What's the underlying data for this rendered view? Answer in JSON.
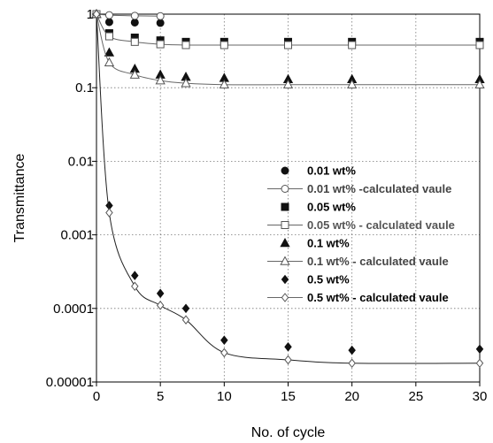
{
  "chart_data": {
    "type": "scatter",
    "xlabel": "No. of cycle",
    "ylabel": "Transmittance",
    "xlim": [
      0,
      30
    ],
    "ylim": [
      1e-05,
      1
    ],
    "y_scale": "log",
    "grid": "dotted",
    "legend_position": "right-center",
    "x_ticks": [
      0,
      5,
      10,
      15,
      20,
      25,
      30
    ],
    "x_tick_labels": [
      "0",
      "5",
      "10",
      "15",
      "20",
      "25",
      "30"
    ],
    "y_ticks": [
      1e-05,
      0.0001,
      0.001,
      0.01,
      0.1,
      1
    ],
    "y_tick_labels": [
      "0.00001",
      "0.0001",
      "0.001",
      "0.01",
      "0.1",
      "1"
    ],
    "series": [
      {
        "name": "0.01  wt%",
        "marker": "filled-circle",
        "line": false,
        "legend_bold": true,
        "legend_color": "#000000",
        "x": [
          0,
          1,
          3,
          5
        ],
        "y": [
          1,
          0.78,
          0.77,
          0.76
        ]
      },
      {
        "name": "0.01 wt% -calculated vaule",
        "marker": "open-circle",
        "line": true,
        "legend_bold": true,
        "legend_color": "#444444",
        "x": [
          0,
          1,
          3,
          5
        ],
        "y": [
          1,
          0.97,
          0.95,
          0.94
        ]
      },
      {
        "name": "0.05 wt%",
        "marker": "filled-square",
        "line": false,
        "legend_bold": true,
        "legend_color": "#000000",
        "x": [
          0,
          1,
          3,
          5,
          7,
          10,
          15,
          20,
          30
        ],
        "y": [
          1,
          0.55,
          0.48,
          0.44,
          0.42,
          0.42,
          0.42,
          0.42,
          0.42
        ]
      },
      {
        "name": "0.05 wt%  - calculated vaule",
        "marker": "open-square",
        "line": true,
        "legend_bold": true,
        "legend_color": "#555555",
        "x": [
          0,
          1,
          3,
          5,
          7,
          10,
          15,
          20,
          30
        ],
        "y": [
          1,
          0.5,
          0.42,
          0.39,
          0.38,
          0.38,
          0.38,
          0.38,
          0.38
        ]
      },
      {
        "name": "0.1 wt%",
        "marker": "filled-triangle",
        "line": false,
        "legend_bold": true,
        "legend_color": "#000000",
        "x": [
          0,
          1,
          3,
          5,
          7,
          10,
          15,
          20,
          30
        ],
        "y": [
          1,
          0.3,
          0.18,
          0.15,
          0.14,
          0.135,
          0.13,
          0.13,
          0.13
        ]
      },
      {
        "name": "0.1 wt% - calculated vaule",
        "marker": "open-triangle",
        "line": true,
        "legend_bold": true,
        "legend_color": "#444444",
        "x": [
          0,
          1,
          3,
          5,
          7,
          10,
          15,
          20,
          30
        ],
        "y": [
          1,
          0.22,
          0.15,
          0.125,
          0.115,
          0.11,
          0.11,
          0.11,
          0.11
        ]
      },
      {
        "name": "0.5 wt%",
        "marker": "filled-diamond",
        "line": false,
        "legend_bold": true,
        "legend_color": "#000000",
        "x": [
          0,
          1,
          3,
          5,
          7,
          10,
          15,
          20,
          30
        ],
        "y": [
          1,
          0.0025,
          0.00028,
          0.00016,
          0.0001,
          3.7e-05,
          3e-05,
          2.7e-05,
          2.8e-05
        ]
      },
      {
        "name": "0.5 wt% - calculated vaule",
        "marker": "open-diamond",
        "line": true,
        "legend_bold": true,
        "legend_color": "#000000",
        "x": [
          0,
          1,
          3,
          5,
          7,
          10,
          15,
          20,
          30
        ],
        "y": [
          1,
          0.002,
          0.0002,
          0.00011,
          7e-05,
          2.5e-05,
          2e-05,
          1.8e-05,
          1.8e-05
        ]
      }
    ]
  }
}
